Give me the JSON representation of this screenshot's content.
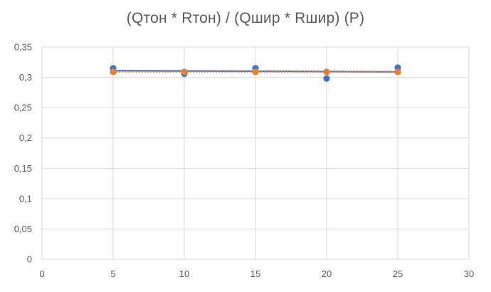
{
  "chart_data": {
    "type": "scatter",
    "title": "(Qтон * Rтон) / (Qшир * Rшир) (P)",
    "xlabel": "",
    "ylabel": "",
    "xlim": [
      0,
      30
    ],
    "ylim": [
      0,
      0.35
    ],
    "x_ticks": [
      "0",
      "5",
      "10",
      "15",
      "20",
      "25",
      "30"
    ],
    "y_ticks": [
      "0",
      "0,05",
      "0,1",
      "0,15",
      "0,2",
      "0,25",
      "0,3",
      "0,35"
    ],
    "x_tick_values": [
      0,
      5,
      10,
      15,
      20,
      25,
      30
    ],
    "y_tick_values": [
      0,
      0.05,
      0.1,
      0.15,
      0.2,
      0.25,
      0.3,
      0.35
    ],
    "grid": "horizontal and vertical",
    "legend": "none",
    "series": [
      {
        "color": "#4472C4",
        "x": [
          5,
          10,
          15,
          20,
          25
        ],
        "y": [
          0.315,
          0.306,
          0.315,
          0.298,
          0.316
        ],
        "trendline": {
          "style": "solid",
          "y_start": 0.311,
          "y_end": 0.309
        }
      },
      {
        "color": "#ED7D31",
        "x": [
          5,
          10,
          15,
          20,
          25
        ],
        "y": [
          0.309,
          0.309,
          0.309,
          0.309,
          0.309
        ],
        "trendline": {
          "style": "dotted",
          "y_start": 0.309,
          "y_end": 0.309
        }
      }
    ]
  }
}
